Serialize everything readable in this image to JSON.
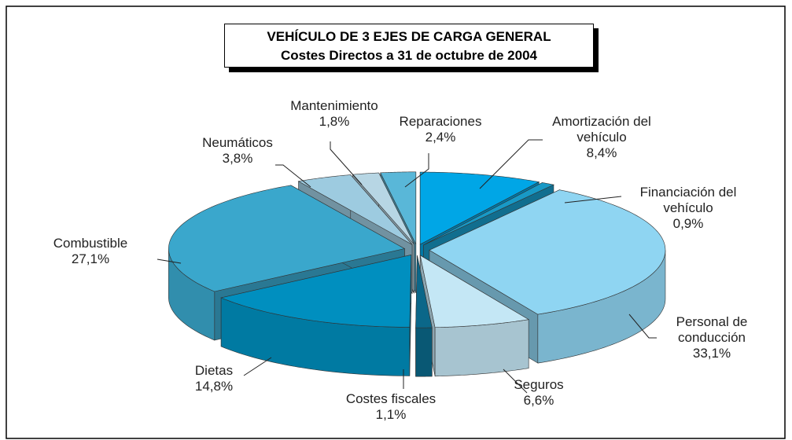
{
  "chart_data": {
    "type": "pie3d",
    "title": "VEHÍCULO DE 3 EJES DE CARGA GENERAL",
    "subtitle": "Costes Directos a 31 de octubre de 2004",
    "categories": [
      "Amortización del vehículo",
      "Financiación del vehículo",
      "Personal de conducción",
      "Seguros",
      "Costes fiscales",
      "Dietas",
      "Combustible",
      "Neumáticos",
      "Mantenimiento",
      "Reparaciones"
    ],
    "values": [
      8.4,
      0.9,
      33.1,
      6.6,
      1.1,
      14.8,
      27.1,
      3.8,
      1.8,
      2.4
    ],
    "value_labels": [
      "8,4%",
      "0,9%",
      "33,1%",
      "6,6%",
      "1,1%",
      "14,8%",
      "27,1%",
      "3,8%",
      "1,8%",
      "2,4%"
    ],
    "colors": [
      "#00a6e6",
      "#1899c6",
      "#8fd5f2",
      "#c4e7f5",
      "#0b6789",
      "#008fbf",
      "#3aa7cc",
      "#9dcbe0",
      "#b7d6e4",
      "#59b7d8"
    ]
  }
}
